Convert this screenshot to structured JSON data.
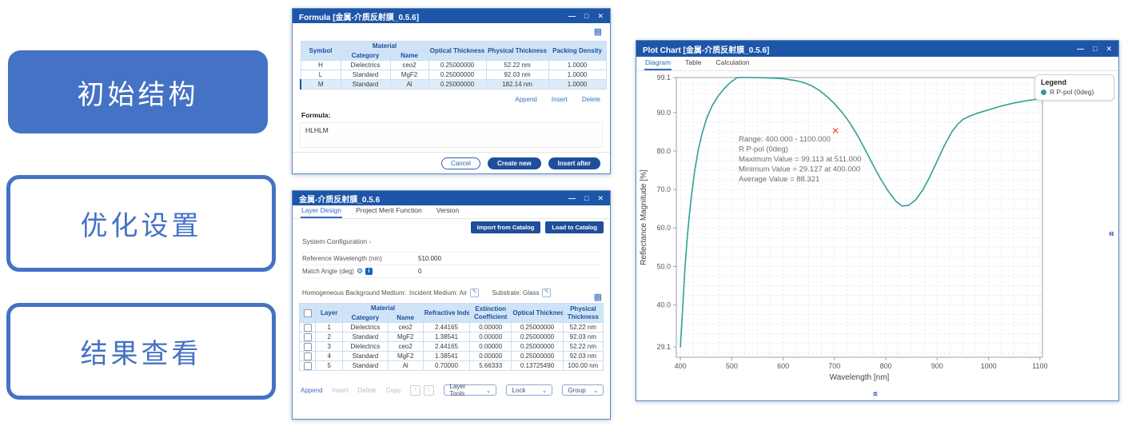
{
  "icons": {
    "minimize": "—",
    "maximize": "□",
    "close": "✕",
    "table_settings": "▦",
    "gear": "⚙",
    "info": "i",
    "edit": "✎",
    "chevron_right": "›",
    "chevron_down": "⌄",
    "arrow_up": "↑",
    "arrow_down": "↓",
    "collapse": "«"
  },
  "left_panel": {
    "steps": [
      {
        "label": "初始结构"
      },
      {
        "label": "优化设置"
      },
      {
        "label": "结果查看"
      }
    ],
    "accent_color": "#4472c4"
  },
  "formula_window": {
    "title": "Formula [金属-介质反射膜_0.5.6]",
    "table": {
      "headers": {
        "symbol": "Symbol",
        "material": "Material",
        "category": "Category",
        "name": "Name",
        "optical": "Optical Thickness",
        "physical": "Physical Thickness",
        "packing": "Packing Density"
      },
      "rows": [
        [
          "H",
          "Dielectrics",
          "ceo2",
          "0.25000000",
          "52.22 nm",
          "1.0000"
        ],
        [
          "L",
          "Standard",
          "MgF2",
          "0.25000000",
          "92.03 nm",
          "1.0000"
        ],
        [
          "M",
          "Standard",
          "Al",
          "0.25000000",
          "182.14 nm",
          "1.0000"
        ]
      ],
      "selected_row": 2
    },
    "actions": {
      "append": "Append",
      "insert": "Insert",
      "delete": "Delete"
    },
    "formula_label": "Formula:",
    "formula_value": "HLHLM",
    "footer": {
      "cancel": "Cancel",
      "create_new": "Create new",
      "insert_after": "Insert after"
    }
  },
  "layer_window": {
    "title": "金属-介质反射膜_0.5.6",
    "tabs": [
      "Layer Design",
      "Project Merit Function",
      "Version"
    ],
    "active_tab": "Layer Design",
    "catalog_buttons": {
      "import": "Import from Catalog",
      "load": "Load to Catalog"
    },
    "system_configuration": "System Configuration",
    "fields": [
      {
        "label": "Reference Wavelength (nm)",
        "value": "510.000"
      },
      {
        "label": "Match Angle (deg)",
        "value": "0"
      }
    ],
    "background_medium": {
      "label": "Homogeneous Background Medium:",
      "incident": "Incident Medium: Air",
      "substrate": "Substrate: Glass"
    },
    "table": {
      "headers": {
        "layer": "Layer",
        "material": "Material",
        "category": "Category",
        "name": "Name",
        "refractive": "Refractive Index",
        "extinction": "Extinction Coefficient",
        "optical": "Optical Thickness",
        "physical": "Physical Thickness"
      },
      "rows": [
        [
          "1",
          "Dielectrics",
          "ceo2",
          "2.44165",
          "0.00000",
          "0.25000000",
          "52.22 nm"
        ],
        [
          "2",
          "Standard",
          "MgF2",
          "1.38541",
          "0.00000",
          "0.25000000",
          "92.03 nm"
        ],
        [
          "3",
          "Dielectrics",
          "ceo2",
          "2.44165",
          "0.00000",
          "0.25000000",
          "52.22 nm"
        ],
        [
          "4",
          "Standard",
          "MgF2",
          "1.38541",
          "0.00000",
          "0.25000000",
          "92.03 nm"
        ],
        [
          "5",
          "Standard",
          "Al",
          "0.70000",
          "5.66333",
          "0.13725490",
          "100.00 nm"
        ]
      ]
    },
    "footer": {
      "append": "Append",
      "insert": "Insert",
      "delete": "Delete",
      "copy": "Copy",
      "dropdowns": [
        "Layer Tools",
        "Lock",
        "Group"
      ]
    }
  },
  "plot_window": {
    "title": "Plot Chart [金属-介质反射膜_0.5.6]",
    "tabs": [
      "Diagram",
      "Table",
      "Calculation"
    ],
    "active_tab": "Diagram",
    "legend": {
      "title": "Legend",
      "series": "R P-pol (0deg)"
    },
    "annotation": [
      "Range: 400.000 - 1100.000",
      "R P-pol (0deg)",
      "Maximum Value = 99.113 at 511.000",
      "Minimum Value = 29.127 at 400.000",
      "Average Value = 88.321"
    ]
  },
  "chart_data": {
    "type": "line",
    "title": "",
    "xlabel": "Wavelength [nm]",
    "ylabel": "Reflectance Magnitude [%]",
    "xlim": [
      392,
      1105
    ],
    "ylim": [
      26.4,
      99.1
    ],
    "x_ticks": [
      400,
      500,
      600,
      700,
      800,
      900,
      1000,
      1100
    ],
    "y_ticks": [
      99.1,
      90.0,
      80.0,
      70.0,
      60.0,
      50.0,
      40.0,
      29.1
    ],
    "grid": "minor-dashed",
    "legend_position": "top-right",
    "series": [
      {
        "name": "R P-pol (0deg)",
        "color": "#2fa094",
        "points": [
          [
            400,
            29.127
          ],
          [
            403,
            36
          ],
          [
            406,
            43
          ],
          [
            409,
            50
          ],
          [
            413,
            57
          ],
          [
            417,
            63
          ],
          [
            422,
            69
          ],
          [
            428,
            75
          ],
          [
            435,
            80.5
          ],
          [
            443,
            85
          ],
          [
            452,
            88.8
          ],
          [
            462,
            91.8
          ],
          [
            473,
            94.2
          ],
          [
            485,
            96.2
          ],
          [
            497,
            97.8
          ],
          [
            511,
            99.113
          ],
          [
            530,
            99.1
          ],
          [
            555,
            99.05
          ],
          [
            580,
            98.95
          ],
          [
            600,
            98.8
          ],
          [
            625,
            98.3
          ],
          [
            640,
            97.8
          ],
          [
            655,
            97
          ],
          [
            670,
            95.8
          ],
          [
            685,
            94.2
          ],
          [
            700,
            92.3
          ],
          [
            715,
            90
          ],
          [
            730,
            87.3
          ],
          [
            745,
            84
          ],
          [
            760,
            80.3
          ],
          [
            775,
            76.4
          ],
          [
            790,
            72.7
          ],
          [
            805,
            69.5
          ],
          [
            820,
            66.9
          ],
          [
            832,
            65.7
          ],
          [
            845,
            65.9
          ],
          [
            858,
            67.3
          ],
          [
            872,
            69.9
          ],
          [
            886,
            73.4
          ],
          [
            900,
            77.4
          ],
          [
            914,
            81.4
          ],
          [
            928,
            84.9
          ],
          [
            940,
            87
          ],
          [
            950,
            88.2
          ],
          [
            965,
            89.2
          ],
          [
            980,
            89.9
          ],
          [
            1000,
            90.7
          ],
          [
            1025,
            91.7
          ],
          [
            1050,
            92.5
          ],
          [
            1075,
            93.1
          ],
          [
            1100,
            93.6
          ]
        ]
      }
    ],
    "cursor_marker": {
      "x": 702,
      "y": 85.3,
      "color": "#e0524f"
    },
    "stats": {
      "range": "400.000 - 1100.000",
      "maximum": {
        "value": 99.113,
        "at": 511.0
      },
      "minimum": {
        "value": 29.127,
        "at": 400.0
      },
      "average": 88.321
    }
  }
}
